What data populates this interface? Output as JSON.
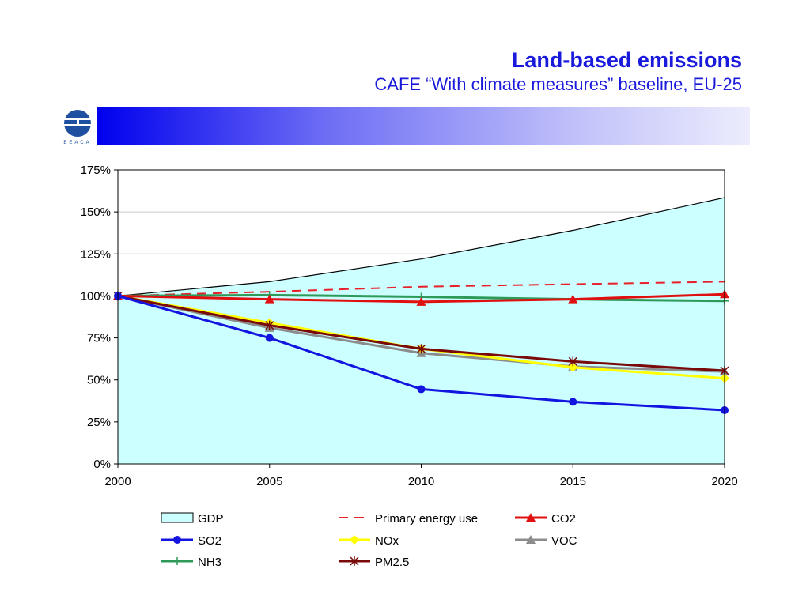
{
  "header": {
    "title": "Land-based emissions",
    "subtitle": "CAFE “With climate measures” baseline, EU-25",
    "logo_text": "EEACA"
  },
  "colors": {
    "title": "#1a1adc",
    "plot_fill": "#ccffff",
    "gdp": "#000000",
    "primary_energy": "#e8202a",
    "co2": "#e01010",
    "so2": "#1414e0",
    "nox": "#ffff00",
    "voc": "#8c8c8c",
    "nh3": "#2e9a5a",
    "pm25": "#7a0a0a"
  },
  "chart_data": {
    "type": "line",
    "x": [
      2000,
      2005,
      2010,
      2015,
      2020
    ],
    "x_tick_labels": [
      "2000",
      "2005",
      "2010",
      "2015",
      "2020"
    ],
    "ylim": [
      0,
      175
    ],
    "y_tick_labels": [
      "0%",
      "25%",
      "50%",
      "75%",
      "100%",
      "125%",
      "150%",
      "175%"
    ],
    "y_ticks": [
      0,
      25,
      50,
      75,
      100,
      125,
      150,
      175
    ],
    "grid": true,
    "legend_position": "bottom",
    "series": [
      {
        "key": "gdp",
        "name": "GDP",
        "style": "area",
        "values": [
          100,
          108.5,
          122,
          139,
          158.5
        ]
      },
      {
        "key": "primary_energy",
        "name": "Primary energy use",
        "style": "dashed",
        "values": [
          100,
          102.5,
          105.5,
          107,
          108.5
        ]
      },
      {
        "key": "co2",
        "name": "CO2",
        "marker": "triangle",
        "values": [
          100,
          98,
          96.5,
          98,
          101
        ]
      },
      {
        "key": "so2",
        "name": "SO2",
        "marker": "circle",
        "values": [
          100,
          75,
          44.5,
          37,
          32
        ]
      },
      {
        "key": "nox",
        "name": "NOx",
        "marker": "diamond",
        "values": [
          100,
          84,
          68.5,
          57.5,
          51
        ]
      },
      {
        "key": "voc",
        "name": "VOC",
        "marker": "triangle",
        "values": [
          100,
          81,
          66,
          58,
          55
        ]
      },
      {
        "key": "nh3",
        "name": "NH3",
        "marker": "plus",
        "values": [
          100,
          100.5,
          99.5,
          98,
          97
        ]
      },
      {
        "key": "pm25",
        "name": "PM2.5",
        "marker": "star",
        "values": [
          100,
          82.5,
          68.5,
          61,
          55.5
        ]
      }
    ]
  }
}
